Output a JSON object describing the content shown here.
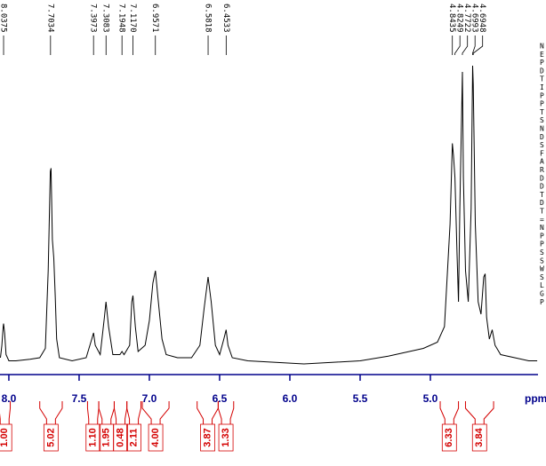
{
  "chart_data": {
    "type": "nmr",
    "x_label": "ppm",
    "xlim": [
      8.063,
      4.234
    ],
    "ylim": [
      0,
      100
    ],
    "xticks": [
      {
        "value": 8,
        "label": "8.0"
      },
      7.5,
      {
        "value": 7,
        "label": "7.0"
      },
      6.5,
      {
        "value": 6,
        "label": "6.0"
      },
      5.5,
      {
        "value": 5,
        "label": "5.0"
      }
    ],
    "color": "#000000",
    "axis_color": "#00008b",
    "peaks": [
      8.0375,
      7.7034,
      7.3973,
      7.3083,
      7.1948,
      7.117,
      6.9571,
      6.5818,
      6.4533,
      4.8435,
      4.8249,
      4.7722,
      4.6993,
      4.6948
    ],
    "peak_labels": [
      "8.0375",
      "7.7034",
      "7.3973",
      "7.3083",
      "7.1948",
      "7.1170",
      "6.9571",
      "6.5818",
      "6.4533",
      "4.8435",
      "4.8249",
      "4.7722",
      "4.6993",
      "4.6948"
    ],
    "spectrum": {
      "x": [
        8.06,
        8.05,
        8.04,
        8.0375,
        8.03,
        8.02,
        8.0,
        7.95,
        7.85,
        7.78,
        7.74,
        7.72,
        7.705,
        7.7,
        7.69,
        7.68,
        7.67,
        7.66,
        7.64,
        7.55,
        7.45,
        7.41,
        7.3973,
        7.385,
        7.35,
        7.32,
        7.3083,
        7.29,
        7.26,
        7.21,
        7.1948,
        7.18,
        7.14,
        7.125,
        7.117,
        7.1,
        7.08,
        7.03,
        7.0,
        6.975,
        6.957,
        6.94,
        6.91,
        6.88,
        6.8,
        6.7,
        6.64,
        6.61,
        6.5818,
        6.56,
        6.53,
        6.5,
        6.47,
        6.4533,
        6.44,
        6.41,
        6.3,
        6.1,
        5.9,
        5.7,
        5.5,
        5.3,
        5.2,
        5.05,
        4.95,
        4.9,
        4.86,
        4.8435,
        4.835,
        4.825,
        4.81,
        4.8,
        4.79,
        4.7722,
        4.765,
        4.75,
        4.73,
        4.71,
        4.6993,
        4.6948,
        4.68,
        4.66,
        4.64,
        4.62,
        4.61,
        4.6,
        4.58,
        4.56,
        4.54,
        4.5,
        4.4,
        4.3,
        4.24
      ],
      "y": [
        2,
        6,
        12,
        13,
        10,
        3,
        1,
        1,
        1.5,
        2,
        5,
        30,
        62,
        63,
        40,
        34,
        22,
        8,
        2,
        1,
        2,
        8,
        10,
        6,
        3,
        15,
        20,
        12,
        3,
        3,
        4,
        3,
        6,
        20,
        22,
        12,
        4,
        6,
        14,
        26,
        30,
        22,
        8,
        3,
        2,
        2,
        6,
        18,
        28,
        20,
        6,
        3,
        8,
        11,
        6,
        2,
        1,
        0.5,
        0,
        0.5,
        1,
        2.5,
        3.5,
        5,
        7,
        12,
        45,
        71,
        67,
        60,
        35,
        20,
        50,
        94,
        60,
        30,
        20,
        50,
        96,
        90,
        45,
        20,
        16,
        28,
        29,
        15,
        8,
        11,
        6,
        3,
        2,
        1,
        1
      ]
    },
    "integrals": {
      "color": "#d40000",
      "ranges": [
        [
          8.07,
          7.99
        ],
        [
          7.78,
          7.62
        ],
        [
          7.44,
          7.36
        ],
        [
          7.36,
          7.25
        ],
        [
          7.25,
          7.16
        ],
        [
          7.16,
          7.06
        ],
        [
          7.05,
          6.86
        ],
        [
          6.66,
          6.51
        ],
        [
          6.51,
          6.4
        ],
        [
          4.93,
          4.8
        ],
        [
          4.75,
          4.55
        ]
      ],
      "values": [
        1,
        5.02,
        1.1,
        1.95,
        0.48,
        2.11,
        4,
        3.87,
        1.33,
        6.33,
        3.84
      ],
      "value_labels": [
        "1.00",
        "5.02",
        "1.10",
        "1.95",
        "0.48",
        "2.11",
        "4.00",
        "3.87",
        "1.33",
        "6.33",
        "3.84"
      ]
    },
    "side_text": [
      "N",
      "E",
      "P",
      "D",
      "T",
      "I",
      "P",
      "P",
      "T",
      "S",
      "N",
      "D",
      "S",
      "F",
      "A",
      "R",
      "D",
      "D",
      "T",
      "D",
      "T",
      "=",
      "N",
      "P",
      "P",
      "S",
      "S",
      "W",
      "S",
      "L",
      "G",
      "P"
    ]
  }
}
